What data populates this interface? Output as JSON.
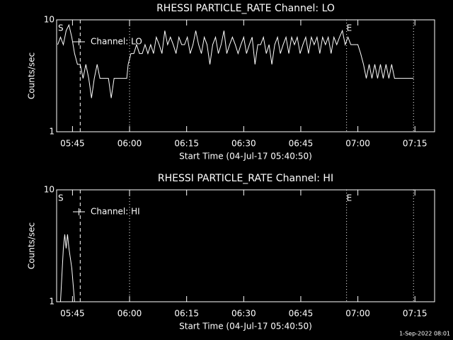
{
  "chart_data": [
    {
      "type": "line",
      "title": "RHESSI PARTICLE_RATE Channel: LO",
      "xlabel": "Start Time (04-Jul-17 05:40:50)",
      "ylabel": "Counts/sec",
      "log_y": true,
      "ylim": [
        1,
        10
      ],
      "yticks": [
        1,
        10
      ],
      "xlim": [
        0,
        5960
      ],
      "xticks": [
        {
          "value": 250,
          "label": "05:45"
        },
        {
          "value": 1150,
          "label": "06:00"
        },
        {
          "value": 2050,
          "label": "06:15"
        },
        {
          "value": 2950,
          "label": "06:30"
        },
        {
          "value": 3850,
          "label": "06:45"
        },
        {
          "value": 4750,
          "label": "07:00"
        },
        {
          "value": 5650,
          "label": "07:15"
        }
      ],
      "vlines": [
        {
          "x": 372,
          "style": "dashed"
        },
        {
          "x": 1150,
          "style": "dotted"
        },
        {
          "x": 4572,
          "style": "dotted"
        },
        {
          "x": 5628,
          "style": "dotted"
        }
      ],
      "annotations": [
        {
          "text": "S",
          "x": 17
        },
        {
          "text": "E",
          "x": 4572
        }
      ],
      "x": [
        17,
        61,
        106,
        150,
        194,
        239,
        283,
        328,
        372,
        417,
        461,
        506,
        550,
        594,
        639,
        683,
        728,
        772,
        817,
        861,
        906,
        972,
        1039,
        1106,
        1128,
        1172,
        1217,
        1261,
        1306,
        1350,
        1394,
        1439,
        1483,
        1528,
        1572,
        1617,
        1661,
        1706,
        1750,
        1794,
        1839,
        1883,
        1928,
        1972,
        2017,
        2061,
        2106,
        2150,
        2194,
        2239,
        2283,
        2328,
        2372,
        2417,
        2461,
        2506,
        2550,
        2594,
        2639,
        2683,
        2728,
        2772,
        2817,
        2861,
        2906,
        2950,
        2994,
        3039,
        3083,
        3128,
        3172,
        3217,
        3261,
        3306,
        3350,
        3394,
        3439,
        3483,
        3528,
        3572,
        3617,
        3661,
        3706,
        3750,
        3794,
        3839,
        3883,
        3928,
        3972,
        4017,
        4061,
        4106,
        4150,
        4194,
        4239,
        4283,
        4328,
        4372,
        4417,
        4461,
        4506,
        4550,
        4594,
        4639,
        4683,
        4750,
        4794,
        4839,
        4883,
        4928,
        4972,
        5017,
        5061,
        5106,
        5150,
        5194,
        5239,
        5283,
        5328,
        5372,
        5461,
        5550,
        5628
      ],
      "series": [
        {
          "name": "Channel: LO",
          "color": "#ffffff",
          "values": [
            6,
            7,
            6,
            8,
            9,
            7,
            5,
            4,
            4,
            3,
            4,
            3,
            2,
            3,
            4,
            3,
            3,
            3,
            3,
            2,
            3,
            3,
            3,
            3,
            4,
            5,
            5,
            6,
            5,
            5,
            6,
            5,
            6,
            5,
            7,
            6,
            5,
            8,
            6,
            7,
            6,
            5,
            7,
            6,
            6,
            7,
            5,
            6,
            8,
            6,
            5,
            7,
            6,
            4,
            6,
            7,
            5,
            6,
            8,
            5,
            6,
            7,
            6,
            5,
            6,
            7,
            5,
            6,
            7,
            4,
            6,
            6,
            7,
            5,
            6,
            4,
            6,
            7,
            5,
            6,
            7,
            5,
            7,
            6,
            7,
            5,
            6,
            7,
            5,
            7,
            6,
            7,
            5,
            7,
            6,
            7,
            5,
            7,
            6,
            7,
            8,
            6,
            7,
            6,
            6,
            6,
            5,
            4,
            3,
            4,
            3,
            4,
            3,
            4,
            3,
            4,
            3,
            4,
            3,
            3,
            3,
            3,
            3
          ]
        }
      ]
    },
    {
      "type": "line",
      "title": "RHESSI PARTICLE_RATE Channel: HI",
      "xlabel": "Start Time (04-Jul-17 05:40:50)",
      "ylabel": "Counts/sec",
      "log_y": true,
      "ylim": [
        1,
        10
      ],
      "yticks": [
        1,
        10
      ],
      "xlim": [
        0,
        5960
      ],
      "xticks": [
        {
          "value": 250,
          "label": "05:45"
        },
        {
          "value": 1150,
          "label": "06:00"
        },
        {
          "value": 2050,
          "label": "06:15"
        },
        {
          "value": 2950,
          "label": "06:30"
        },
        {
          "value": 3850,
          "label": "06:45"
        },
        {
          "value": 4750,
          "label": "07:00"
        },
        {
          "value": 5650,
          "label": "07:15"
        }
      ],
      "vlines": [
        {
          "x": 372,
          "style": "dashed"
        },
        {
          "x": 1150,
          "style": "dotted"
        },
        {
          "x": 4572,
          "style": "dotted"
        },
        {
          "x": 5628,
          "style": "dotted"
        }
      ],
      "annotations": [
        {
          "text": "S",
          "x": 17
        },
        {
          "text": "E",
          "x": 4572
        }
      ],
      "x": [
        61,
        106,
        128,
        150,
        172,
        194,
        239,
        283
      ],
      "series": [
        {
          "name": "Channel: HI",
          "color": "#ffffff",
          "values": [
            1,
            3,
            4,
            3,
            4,
            3,
            2,
            1
          ]
        }
      ]
    }
  ],
  "footer": "1-Sep-2022 08:01"
}
